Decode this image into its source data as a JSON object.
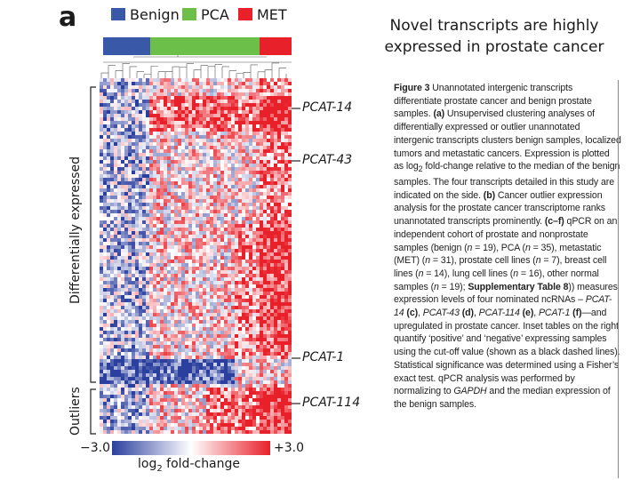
{
  "figure": {
    "panel_letter": "a",
    "legend": [
      {
        "label": "Benign",
        "color": "#3a58a8"
      },
      {
        "label": "PCA",
        "color": "#6cc04a"
      },
      {
        "label": "MET",
        "color": "#e8202a"
      }
    ],
    "sample_bar": {
      "benign_fraction": 0.25,
      "pca_fraction": 0.57,
      "met_fraction": 0.18
    },
    "y_axis_labels": {
      "top": "Differentially expressed",
      "bottom": "Outliers"
    },
    "transcript_labels": [
      "PCAT-14",
      "PCAT-43",
      "PCAT-1",
      "PCAT-114"
    ],
    "colorbar": {
      "min_label": "−3.0",
      "max_label": "+3.0",
      "label_prefix": "log",
      "label_sub": "2",
      "label_suffix": " fold-change",
      "low_color": "#2b3f9e",
      "mid_color": "#ffffff",
      "high_color": "#e8202a"
    }
  },
  "slide": {
    "title_line1": "Novel transcripts are highly",
    "title_line2": "expressed in prostate cancer"
  },
  "caption": {
    "fig_label": "Figure 3",
    "t1": " Unannotated intergenic transcripts differentiate prostate cancer and benign prostate samples. ",
    "a_label": "(a)",
    "t2": " Unsupervised clustering analyses of differentially expressed or outlier unannotated intergenic transcripts clusters benign samples, localized tumors and metastatic cancers. Expression is plotted as log",
    "t2_sub": "2",
    "t3": " fold-change relative to the median of the benign samples. The four transcripts detailed in this study are indicated on the side. ",
    "b_label": "(b)",
    "t4": " Cancer outlier expression analysis for the prostate cancer transcriptome ranks unannotated transcripts prominently. ",
    "cf_label": "(c–f)",
    "t5": " qPCR on an independent cohort of prostate and nonprostate samples (benign (",
    "n_sym": "n",
    "t6": " = 19), PCA (",
    "t7": " = 35), metastatic (MET) (",
    "t8": " = 31), prostate cell lines (",
    "t9": " = 7), breast cell lines (",
    "t10": " = 14), lung cell lines (",
    "t11": " = 16), other normal samples (",
    "t12": " = 19); ",
    "supp": "Supplementary Table 8",
    "t13": ")) measures expression levels of four nominated ncRNAs – ",
    "g1": "PCAT-14",
    "c_label": " (c)",
    "t14": ", ",
    "g2": "PCAT-43",
    "d_label": " (d)",
    "t15": ", ",
    "g3": "PCAT-114",
    "e_label": " (e)",
    "t16": ", ",
    "g4": "PCAT-1",
    "f_label": " (f)",
    "t17": "—and upregulated in prostate cancer. Inset tables on the right quantify ‘positive’ and ‘negative’ expressing samples using the cut-off value (shown as a black dashed lines). Statistical significance was determined using a Fisher’s exact test. qPCR analysis was performed by normalizing to ",
    "gapdh": "GAPDH",
    "t18": " and the median expression of the benign samples."
  }
}
